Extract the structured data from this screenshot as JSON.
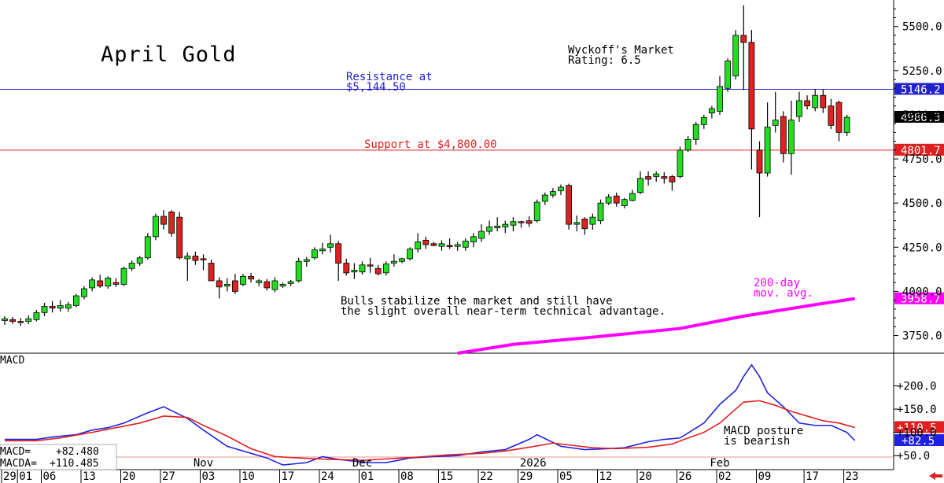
{
  "chart_data": {
    "type": "candlestick",
    "title": "April Gold",
    "rating_line1": "Wyckoff's Market",
    "rating_line2": "Rating: 6.5",
    "price_axis": {
      "ylim": [
        3650,
        5650
      ],
      "ticks": [
        "5500.0",
        "5250.0",
        "5000.0",
        "4750.0",
        "4500.0",
        "4250.0",
        "4000.0",
        "3750.0"
      ],
      "tick_values": [
        5500,
        5250,
        5000,
        4750,
        4500,
        4250,
        4000,
        3750
      ]
    },
    "levels": {
      "resistance": {
        "value": 5144.5,
        "label_line1": "Resistance at",
        "label_line2": "$5,144.50",
        "tag": "5146.2",
        "color": "#2222cc"
      },
      "support": {
        "value": 4800,
        "label": "Support at $4,800.00",
        "tag": "4801.7",
        "color": "#e02020"
      },
      "last": {
        "value": 4986.3,
        "tag": "4986.3"
      },
      "ma": {
        "value": 3958.7,
        "tag": "3958.7",
        "label_line1": "200-day",
        "label_line2": "mov. avg.",
        "color": "#ff00ff"
      }
    },
    "commentary_line1": "Bulls stabilize the market and still have",
    "commentary_line2": "the slight overall near-term technical advantage.",
    "candles": [
      {
        "o": 3835,
        "h": 3860,
        "l": 3810,
        "c": 3845
      },
      {
        "o": 3840,
        "h": 3855,
        "l": 3815,
        "c": 3830
      },
      {
        "o": 3830,
        "h": 3850,
        "l": 3805,
        "c": 3825
      },
      {
        "o": 3830,
        "h": 3865,
        "l": 3815,
        "c": 3845
      },
      {
        "o": 3840,
        "h": 3895,
        "l": 3830,
        "c": 3880
      },
      {
        "o": 3880,
        "h": 3935,
        "l": 3860,
        "c": 3915
      },
      {
        "o": 3915,
        "h": 3945,
        "l": 3880,
        "c": 3905
      },
      {
        "o": 3905,
        "h": 3950,
        "l": 3885,
        "c": 3920
      },
      {
        "o": 3905,
        "h": 3940,
        "l": 3885,
        "c": 3925
      },
      {
        "o": 3920,
        "h": 3985,
        "l": 3910,
        "c": 3975
      },
      {
        "o": 3970,
        "h": 4030,
        "l": 3955,
        "c": 4015
      },
      {
        "o": 4020,
        "h": 4080,
        "l": 4000,
        "c": 4065
      },
      {
        "o": 4060,
        "h": 4095,
        "l": 4020,
        "c": 4030
      },
      {
        "o": 4030,
        "h": 4085,
        "l": 4015,
        "c": 4075
      },
      {
        "o": 4050,
        "h": 4075,
        "l": 4025,
        "c": 4040
      },
      {
        "o": 4040,
        "h": 4140,
        "l": 4030,
        "c": 4130
      },
      {
        "o": 4130,
        "h": 4175,
        "l": 4115,
        "c": 4160
      },
      {
        "o": 4160,
        "h": 4200,
        "l": 4145,
        "c": 4190
      },
      {
        "o": 4190,
        "h": 4330,
        "l": 4180,
        "c": 4310
      },
      {
        "o": 4310,
        "h": 4440,
        "l": 4290,
        "c": 4425
      },
      {
        "o": 4425,
        "h": 4460,
        "l": 4350,
        "c": 4380
      },
      {
        "o": 4450,
        "h": 4460,
        "l": 4310,
        "c": 4330
      },
      {
        "o": 4420,
        "h": 4450,
        "l": 4180,
        "c": 4190
      },
      {
        "o": 4185,
        "h": 4220,
        "l": 4060,
        "c": 4200
      },
      {
        "o": 4200,
        "h": 4225,
        "l": 4150,
        "c": 4175
      },
      {
        "o": 4185,
        "h": 4210,
        "l": 4120,
        "c": 4180
      },
      {
        "o": 4160,
        "h": 4180,
        "l": 4060,
        "c": 4060
      },
      {
        "o": 4060,
        "h": 4080,
        "l": 3960,
        "c": 4025
      },
      {
        "o": 4030,
        "h": 4075,
        "l": 4000,
        "c": 4040
      },
      {
        "o": 4060,
        "h": 4100,
        "l": 3985,
        "c": 4000
      },
      {
        "o": 4040,
        "h": 4100,
        "l": 4030,
        "c": 4085
      },
      {
        "o": 4085,
        "h": 4105,
        "l": 4050,
        "c": 4070
      },
      {
        "o": 4050,
        "h": 4070,
        "l": 4030,
        "c": 4060
      },
      {
        "o": 4055,
        "h": 4070,
        "l": 4005,
        "c": 4020
      },
      {
        "o": 4010,
        "h": 4080,
        "l": 3995,
        "c": 4060
      },
      {
        "o": 4030,
        "h": 4050,
        "l": 4020,
        "c": 4040
      },
      {
        "o": 4045,
        "h": 4065,
        "l": 4030,
        "c": 4055
      },
      {
        "o": 4060,
        "h": 4190,
        "l": 4050,
        "c": 4170
      },
      {
        "o": 4170,
        "h": 4195,
        "l": 4140,
        "c": 4180
      },
      {
        "o": 4190,
        "h": 4250,
        "l": 4180,
        "c": 4235
      },
      {
        "o": 4230,
        "h": 4275,
        "l": 4210,
        "c": 4240
      },
      {
        "o": 4250,
        "h": 4320,
        "l": 4220,
        "c": 4270
      },
      {
        "o": 4270,
        "h": 4285,
        "l": 4060,
        "c": 4160
      },
      {
        "o": 4160,
        "h": 4185,
        "l": 4090,
        "c": 4105
      },
      {
        "o": 4110,
        "h": 4160,
        "l": 4070,
        "c": 4120
      },
      {
        "o": 4110,
        "h": 4170,
        "l": 4095,
        "c": 4150
      },
      {
        "o": 4150,
        "h": 4190,
        "l": 4105,
        "c": 4145
      },
      {
        "o": 4130,
        "h": 4150,
        "l": 4090,
        "c": 4100
      },
      {
        "o": 4105,
        "h": 4170,
        "l": 4090,
        "c": 4155
      },
      {
        "o": 4160,
        "h": 4210,
        "l": 4140,
        "c": 4170
      },
      {
        "o": 4170,
        "h": 4190,
        "l": 4160,
        "c": 4185
      },
      {
        "o": 4185,
        "h": 4250,
        "l": 4175,
        "c": 4240
      },
      {
        "o": 4240,
        "h": 4330,
        "l": 4220,
        "c": 4280
      },
      {
        "o": 4290,
        "h": 4310,
        "l": 4240,
        "c": 4265
      },
      {
        "o": 4270,
        "h": 4280,
        "l": 4255,
        "c": 4260
      },
      {
        "o": 4255,
        "h": 4290,
        "l": 4230,
        "c": 4270
      },
      {
        "o": 4260,
        "h": 4300,
        "l": 4240,
        "c": 4255
      },
      {
        "o": 4255,
        "h": 4280,
        "l": 4230,
        "c": 4265
      },
      {
        "o": 4250,
        "h": 4300,
        "l": 4230,
        "c": 4285
      },
      {
        "o": 4280,
        "h": 4330,
        "l": 4250,
        "c": 4310
      },
      {
        "o": 4300,
        "h": 4380,
        "l": 4280,
        "c": 4340
      },
      {
        "o": 4340,
        "h": 4400,
        "l": 4320,
        "c": 4365
      },
      {
        "o": 4360,
        "h": 4420,
        "l": 4340,
        "c": 4370
      },
      {
        "o": 4365,
        "h": 4400,
        "l": 4330,
        "c": 4380
      },
      {
        "o": 4375,
        "h": 4420,
        "l": 4340,
        "c": 4395
      },
      {
        "o": 4395,
        "h": 4400,
        "l": 4360,
        "c": 4390
      },
      {
        "o": 4400,
        "h": 4425,
        "l": 4365,
        "c": 4385
      },
      {
        "o": 4400,
        "h": 4520,
        "l": 4390,
        "c": 4505
      },
      {
        "o": 4510,
        "h": 4560,
        "l": 4490,
        "c": 4545
      },
      {
        "o": 4545,
        "h": 4585,
        "l": 4530,
        "c": 4565
      },
      {
        "o": 4570,
        "h": 4605,
        "l": 4545,
        "c": 4590
      },
      {
        "o": 4600,
        "h": 4610,
        "l": 4350,
        "c": 4380
      },
      {
        "o": 4380,
        "h": 4430,
        "l": 4340,
        "c": 4390
      },
      {
        "o": 4410,
        "h": 4420,
        "l": 4320,
        "c": 4355
      },
      {
        "o": 4380,
        "h": 4440,
        "l": 4350,
        "c": 4420
      },
      {
        "o": 4400,
        "h": 4520,
        "l": 4380,
        "c": 4500
      },
      {
        "o": 4500,
        "h": 4550,
        "l": 4490,
        "c": 4535
      },
      {
        "o": 4540,
        "h": 4560,
        "l": 4480,
        "c": 4500
      },
      {
        "o": 4485,
        "h": 4530,
        "l": 4470,
        "c": 4520
      },
      {
        "o": 4515,
        "h": 4575,
        "l": 4510,
        "c": 4555
      },
      {
        "o": 4560,
        "h": 4680,
        "l": 4550,
        "c": 4640
      },
      {
        "o": 4650,
        "h": 4680,
        "l": 4600,
        "c": 4635
      },
      {
        "o": 4650,
        "h": 4680,
        "l": 4620,
        "c": 4665
      },
      {
        "o": 4650,
        "h": 4675,
        "l": 4610,
        "c": 4640
      },
      {
        "o": 4650,
        "h": 4660,
        "l": 4570,
        "c": 4620
      },
      {
        "o": 4650,
        "h": 4820,
        "l": 4640,
        "c": 4800
      },
      {
        "o": 4800,
        "h": 4880,
        "l": 4790,
        "c": 4860
      },
      {
        "o": 4860,
        "h": 4960,
        "l": 4830,
        "c": 4945
      },
      {
        "o": 4945,
        "h": 5000,
        "l": 4920,
        "c": 4985
      },
      {
        "o": 5010,
        "h": 5050,
        "l": 4980,
        "c": 5035
      },
      {
        "o": 5020,
        "h": 5220,
        "l": 5000,
        "c": 5160
      },
      {
        "o": 5150,
        "h": 5320,
        "l": 5130,
        "c": 5305
      },
      {
        "o": 5220,
        "h": 5480,
        "l": 5200,
        "c": 5450
      },
      {
        "o": 5450,
        "h": 5620,
        "l": 5140,
        "c": 5410
      },
      {
        "o": 5410,
        "h": 5480,
        "l": 4690,
        "c": 4920
      },
      {
        "o": 4800,
        "h": 4850,
        "l": 4420,
        "c": 4670
      },
      {
        "o": 4670,
        "h": 5070,
        "l": 4650,
        "c": 4930
      },
      {
        "o": 4940,
        "h": 5130,
        "l": 4900,
        "c": 4970
      },
      {
        "o": 4990,
        "h": 5020,
        "l": 4730,
        "c": 4780
      },
      {
        "o": 4780,
        "h": 5080,
        "l": 4660,
        "c": 4970
      },
      {
        "o": 4990,
        "h": 5130,
        "l": 4960,
        "c": 5080
      },
      {
        "o": 5080,
        "h": 5110,
        "l": 5030,
        "c": 5050
      },
      {
        "o": 5040,
        "h": 5145,
        "l": 5020,
        "c": 5110
      },
      {
        "o": 5110,
        "h": 5145,
        "l": 5010,
        "c": 5040
      },
      {
        "o": 5050,
        "h": 5090,
        "l": 4920,
        "c": 4940
      },
      {
        "o": 5070,
        "h": 5080,
        "l": 4850,
        "c": 4900
      },
      {
        "o": 4900,
        "h": 5000,
        "l": 4880,
        "c": 4986
      }
    ],
    "ma_series": [
      {
        "x": 57,
        "y": 3650
      },
      {
        "x": 64,
        "y": 3700
      },
      {
        "x": 75,
        "y": 3745
      },
      {
        "x": 85,
        "y": 3790
      },
      {
        "x": 93,
        "y": 3860
      },
      {
        "x": 102,
        "y": 3925
      },
      {
        "x": 107,
        "y": 3959
      }
    ],
    "macd_panel": {
      "title": "MACD",
      "ylim": [
        20,
        270
      ],
      "ticks": [
        "+200.0",
        "+150.0",
        "+100.0",
        "+50.0"
      ],
      "tick_values": [
        200,
        150,
        100,
        50
      ],
      "macd_tag": "+82.5",
      "macda_tag": "+110.5",
      "readout_macd_label": "MACD=",
      "readout_macd_value": "+82.480",
      "readout_macda_label": "MACDA=",
      "readout_macda_value": "+110.485",
      "posture_line1": "MACD posture",
      "posture_line2": "is bearish",
      "series": [
        {
          "name": "MACD",
          "color": "#2020e0",
          "values": [
            [
              0,
              85
            ],
            [
              4,
              85
            ],
            [
              6,
              90
            ],
            [
              9,
              95
            ],
            [
              11,
              105
            ],
            [
              13,
              110
            ],
            [
              15,
              120
            ],
            [
              18,
              142
            ],
            [
              20,
              155
            ],
            [
              23,
              130
            ],
            [
              25,
              105
            ],
            [
              28,
              70
            ],
            [
              31,
              55
            ],
            [
              33,
              45
            ],
            [
              35,
              30
            ],
            [
              38,
              35
            ],
            [
              40,
              48
            ],
            [
              42,
              42
            ],
            [
              44,
              38
            ],
            [
              46,
              35
            ],
            [
              48,
              35
            ],
            [
              51,
              45
            ],
            [
              54,
              48
            ],
            [
              57,
              50
            ],
            [
              60,
              58
            ],
            [
              63,
              63
            ],
            [
              66,
              85
            ],
            [
              67,
              95
            ],
            [
              70,
              70
            ],
            [
              73,
              63
            ],
            [
              76,
              65
            ],
            [
              78,
              67
            ],
            [
              81,
              80
            ],
            [
              83,
              85
            ],
            [
              85,
              88
            ],
            [
              88,
              120
            ],
            [
              90,
              160
            ],
            [
              92,
              190
            ],
            [
              93,
              220
            ],
            [
              94,
              245
            ],
            [
              95,
              220
            ],
            [
              96,
              185
            ],
            [
              98,
              155
            ],
            [
              100,
              120
            ],
            [
              102,
              115
            ],
            [
              104,
              115
            ],
            [
              106,
              100
            ],
            [
              107,
              82.5
            ]
          ]
        },
        {
          "name": "MACDA",
          "color": "#e02020",
          "values": [
            [
              0,
              82
            ],
            [
              4,
              82
            ],
            [
              7,
              88
            ],
            [
              11,
              100
            ],
            [
              14,
              110
            ],
            [
              17,
              120
            ],
            [
              20,
              135
            ],
            [
              23,
              132
            ],
            [
              25,
              115
            ],
            [
              28,
              92
            ],
            [
              31,
              65
            ],
            [
              34,
              48
            ],
            [
              37,
              45
            ],
            [
              41,
              42
            ],
            [
              45,
              40
            ],
            [
              48,
              43
            ],
            [
              52,
              47
            ],
            [
              56,
              52
            ],
            [
              60,
              55
            ],
            [
              63,
              60
            ],
            [
              66,
              68
            ],
            [
              69,
              77
            ],
            [
              71,
              73
            ],
            [
              74,
              67
            ],
            [
              77,
              65
            ],
            [
              81,
              68
            ],
            [
              84,
              75
            ],
            [
              86,
              88
            ],
            [
              88,
              100
            ],
            [
              90,
              120
            ],
            [
              92,
              150
            ],
            [
              93,
              165
            ],
            [
              95,
              168
            ],
            [
              97,
              158
            ],
            [
              99,
              145
            ],
            [
              101,
              135
            ],
            [
              103,
              125
            ],
            [
              105,
              120
            ],
            [
              107,
              110.5
            ]
          ]
        }
      ]
    },
    "date_axis": {
      "day_labels": [
        "29",
        "01",
        "06",
        "13",
        "20",
        "27",
        "03",
        "10",
        "17",
        "24",
        "01",
        "08",
        "15",
        "22",
        "29",
        "05",
        "12",
        "20",
        "26",
        "02",
        "09",
        "17",
        "23"
      ],
      "day_positions": [
        0,
        2,
        5,
        10,
        15,
        20,
        25,
        30,
        35,
        40,
        45,
        50,
        55,
        60,
        65,
        70,
        75,
        80,
        85,
        90,
        95,
        101,
        106
      ],
      "month_labels": [
        "Nov",
        "Dec",
        "2026",
        "Feb"
      ],
      "month_positions": [
        25,
        45,
        66.5,
        90
      ]
    }
  }
}
